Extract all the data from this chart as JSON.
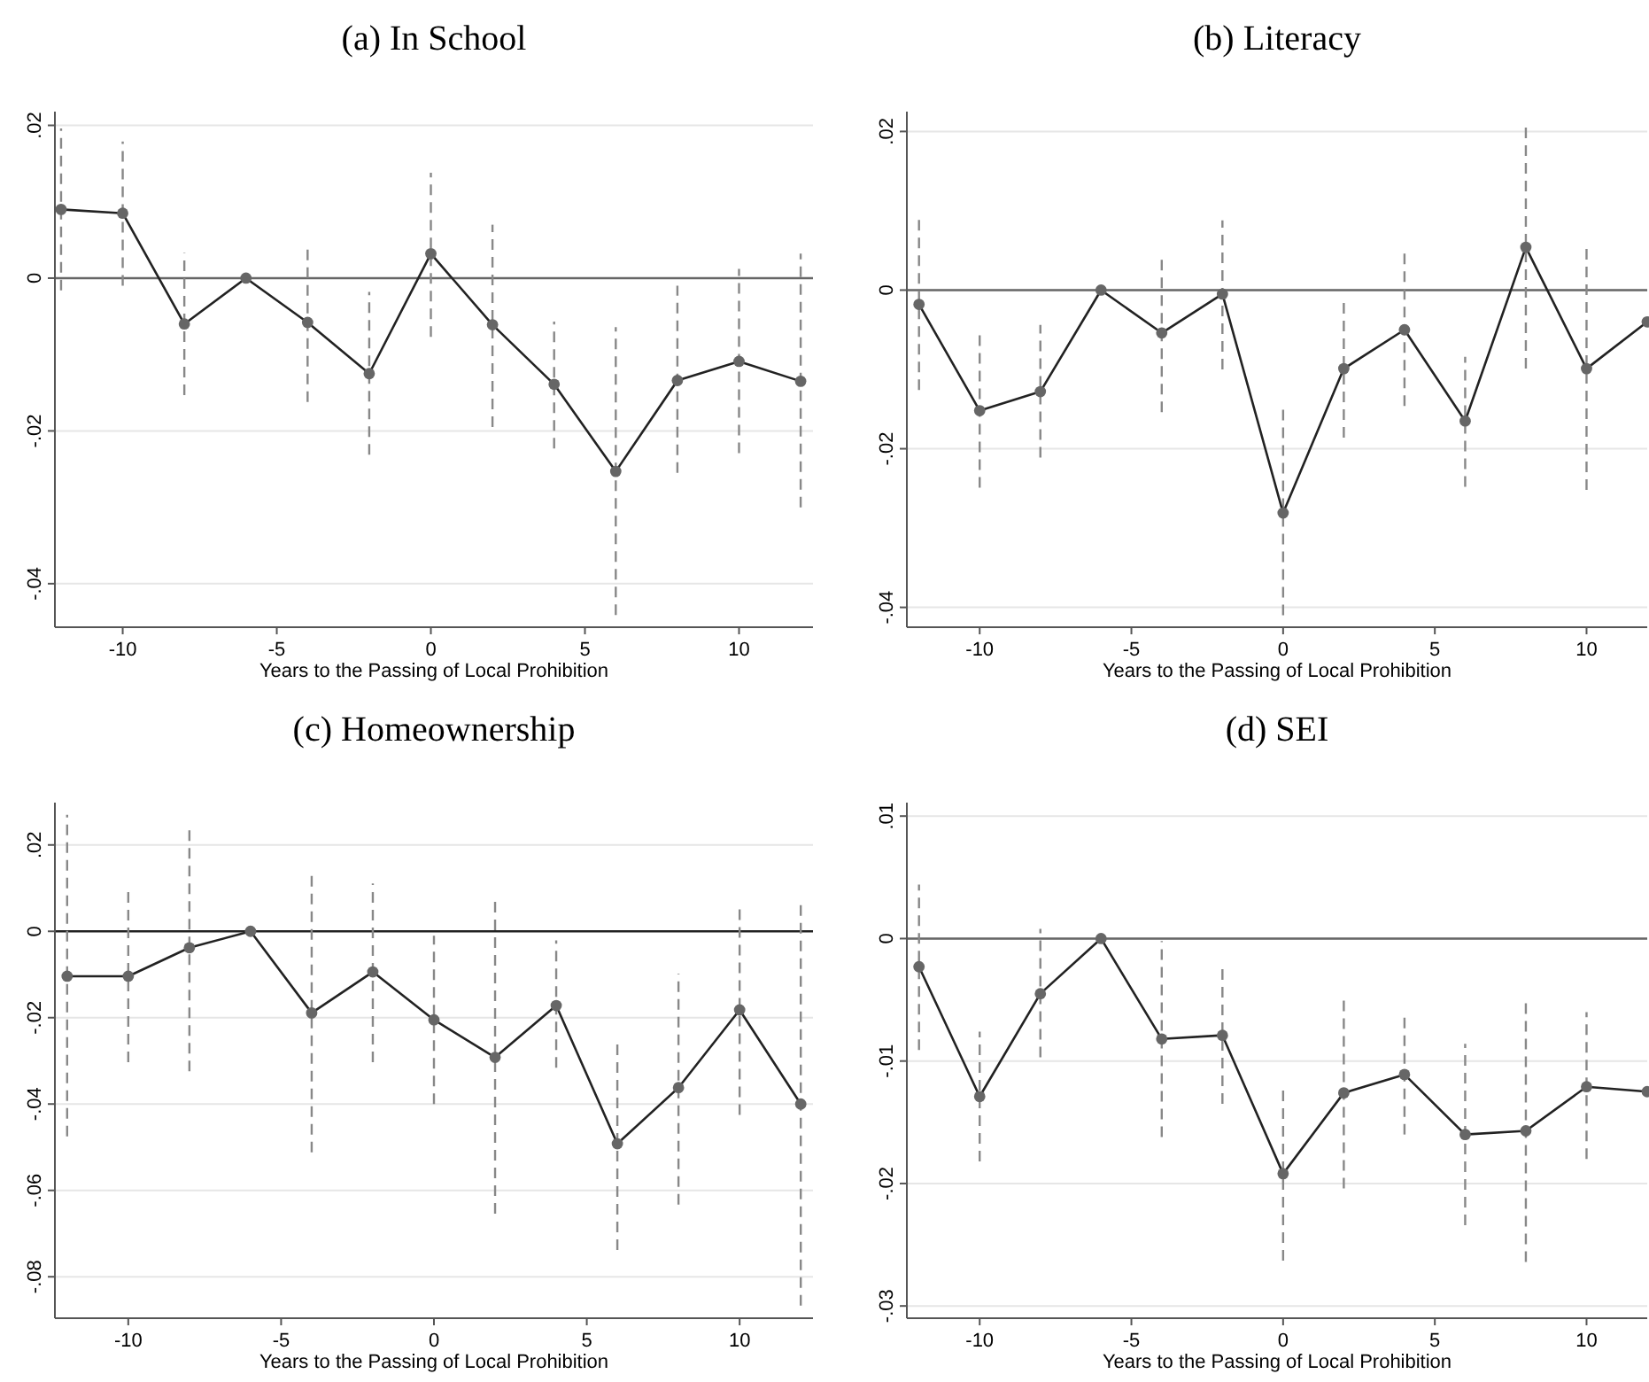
{
  "chart_data": [
    {
      "type": "line",
      "title": "(a) In School",
      "xlabel": "Years to the Passing of Local Prohibition",
      "x": [
        -12,
        -10,
        -8,
        -6,
        -4,
        -2,
        0,
        2,
        4,
        6,
        8,
        10,
        12
      ],
      "xlim": [
        -12.2,
        12.4
      ],
      "xticks": [
        -10,
        -5,
        0,
        5,
        10
      ],
      "ylim": [
        -0.0457,
        0.0218
      ],
      "yticks": [
        {
          "value": -0.04,
          "label": "-.04"
        },
        {
          "value": -0.02,
          "label": "-.02"
        },
        {
          "value": 0,
          "label": "0"
        },
        {
          "value": 0.02,
          "label": ".02"
        }
      ],
      "grid": "y",
      "marker": "circle",
      "line_style": "solid",
      "color": "#222222",
      "values": [
        0.009,
        0.0085,
        -0.006,
        0,
        -0.0058,
        -0.0125,
        0.0032,
        -0.0061,
        -0.0139,
        -0.0253,
        -0.0134,
        -0.0109,
        -0.0135
      ],
      "errors": [
        [
          -0.0016,
          0.0196
        ],
        [
          -0.001,
          0.0179
        ],
        [
          -0.0153,
          0.0033
        ],
        null,
        [
          -0.0162,
          0.0045
        ],
        [
          -0.0231,
          -0.0018
        ],
        [
          -0.0077,
          0.0138
        ],
        [
          -0.0195,
          0.007
        ],
        [
          -0.0223,
          -0.0057
        ],
        [
          -0.0441,
          -0.0064
        ],
        [
          -0.0255,
          -0.001
        ],
        [
          -0.0229,
          0.0012
        ],
        [
          -0.03,
          0.0032
        ]
      ],
      "ref_lines": [
        {
          "axis": "y",
          "value": 0,
          "color": "#666666"
        }
      ]
    },
    {
      "type": "line",
      "title": "(b) Literacy",
      "xlabel": "Years to the Passing of Local Prohibition",
      "x": [
        -12,
        -10,
        -8,
        -6,
        -4,
        -2,
        0,
        2,
        4,
        6,
        8,
        10,
        12
      ],
      "xlim": [
        -12.4,
        12
      ],
      "xticks": [
        -10,
        -5,
        0,
        5,
        10
      ],
      "ylim": [
        -0.0425,
        0.0225
      ],
      "yticks": [
        {
          "value": -0.04,
          "label": "-.04"
        },
        {
          "value": -0.02,
          "label": "-.02"
        },
        {
          "value": 0,
          "label": "0"
        },
        {
          "value": 0.02,
          "label": ".02"
        }
      ],
      "grid": "y",
      "marker": "circle",
      "line_style": "solid",
      "color": "#222222",
      "values": [
        -0.0018,
        -0.0152,
        -0.0128,
        0,
        -0.0054,
        -0.0005,
        -0.0281,
        -0.0099,
        -0.005,
        -0.0165,
        0.0054,
        -0.0099,
        -0.004
      ],
      "errors": [
        [
          -0.0126,
          0.0089
        ],
        [
          -0.0249,
          -0.0055
        ],
        [
          -0.0211,
          -0.0044
        ],
        null,
        0.01,
        [
          -0.01,
          0.0088
        ],
        [
          -0.041,
          -0.0149
        ],
        [
          -0.0186,
          -0.0013
        ],
        [
          -0.0146,
          0.0046
        ],
        [
          -0.0248,
          -0.0084
        ],
        [
          -0.0099,
          0.0209
        ],
        [
          -0.0252,
          0.0054
        ],
        null
      ],
      "ref_lines": [
        {
          "axis": "y",
          "value": 0,
          "color": "#666666"
        }
      ]
    },
    {
      "type": "line",
      "title": "(c) Homeownership",
      "xlabel": "Years to the Passing of Local Prohibition",
      "x": [
        -12,
        -10,
        -8,
        -6,
        -4,
        -2,
        0,
        2,
        4,
        6,
        8,
        10,
        12
      ],
      "xlim": [
        -12.4,
        12.4
      ],
      "xticks": [
        -10,
        -5,
        0,
        5,
        10
      ],
      "ylim": [
        -0.0896,
        0.0298
      ],
      "yticks": [
        {
          "value": -0.08,
          "label": "-.08"
        },
        {
          "value": -0.06,
          "label": "-.06"
        },
        {
          "value": -0.04,
          "label": "-.04"
        },
        {
          "value": -0.02,
          "label": "-.02"
        },
        {
          "value": 0,
          "label": "0"
        },
        {
          "value": 0.02,
          "label": ".02"
        }
      ],
      "grid": "y",
      "marker": "circle",
      "line_style": "solid",
      "color": "#222222",
      "values": [
        -0.0104,
        -0.0104,
        -0.0038,
        0,
        -0.0189,
        -0.0094,
        -0.0205,
        -0.0292,
        -0.0172,
        -0.0492,
        -0.0362,
        -0.0182,
        -0.04
      ],
      "errors": [
        [
          -0.0475,
          0.027
        ],
        [
          -0.0303,
          0.0093
        ],
        0.0286,
        null,
        [
          -0.0512,
          0.0137
        ],
        [
          -0.0303,
          0.0111
        ],
        [
          -0.04,
          -0.001
        ],
        [
          -0.0654,
          0.0068
        ],
        [
          -0.0316,
          -0.0021
        ],
        0.0246,
        [
          -0.0633,
          -0.0098
        ],
        [
          -0.0425,
          0.0061
        ],
        [
          -0.0867,
          0.0071
        ]
      ],
      "ref_lines": [
        {
          "axis": "y",
          "value": 0,
          "color": "#222222"
        }
      ]
    },
    {
      "type": "line",
      "title": "(d) SEI",
      "xlabel": "Years to the Passing of Local Prohibition",
      "x": [
        -12,
        -10,
        -8,
        -6,
        -4,
        -2,
        0,
        2,
        4,
        6,
        8,
        10,
        12
      ],
      "xlim": [
        -12.4,
        12
      ],
      "xticks": [
        -10,
        -5,
        0,
        5,
        10
      ],
      "ylim": [
        -0.031,
        0.0111
      ],
      "yticks": [
        {
          "value": -0.03,
          "label": "-.03"
        },
        {
          "value": -0.02,
          "label": "-.02"
        },
        {
          "value": -0.01,
          "label": "-.01"
        },
        {
          "value": 0,
          "label": "0"
        },
        {
          "value": 0.01,
          "label": ".01"
        }
      ],
      "grid": "y",
      "marker": "circle",
      "line_style": "solid",
      "color": "#222222",
      "values": [
        -0.0023,
        -0.0129,
        -0.0045,
        0,
        -0.0082,
        -0.0079,
        -0.0192,
        -0.0126,
        -0.0111,
        -0.016,
        -0.0157,
        -0.0121,
        -0.0125
      ],
      "errors": [
        [
          -0.0091,
          0.0044
        ],
        [
          -0.0182,
          -0.0076
        ],
        [
          -0.0097,
          0.0008
        ],
        null,
        [
          -0.0162,
          -0.0002
        ],
        [
          -0.0135,
          -0.0021
        ],
        [
          -0.0263,
          -0.0122
        ],
        [
          -0.0204,
          -0.005
        ],
        [
          -0.016,
          -0.006
        ],
        [
          -0.0234,
          -0.0086
        ],
        [
          -0.0264,
          -0.005
        ],
        [
          -0.018,
          -0.006
        ],
        null
      ],
      "ref_lines": [
        {
          "axis": "y",
          "value": 0,
          "color": "#666666"
        }
      ]
    }
  ]
}
